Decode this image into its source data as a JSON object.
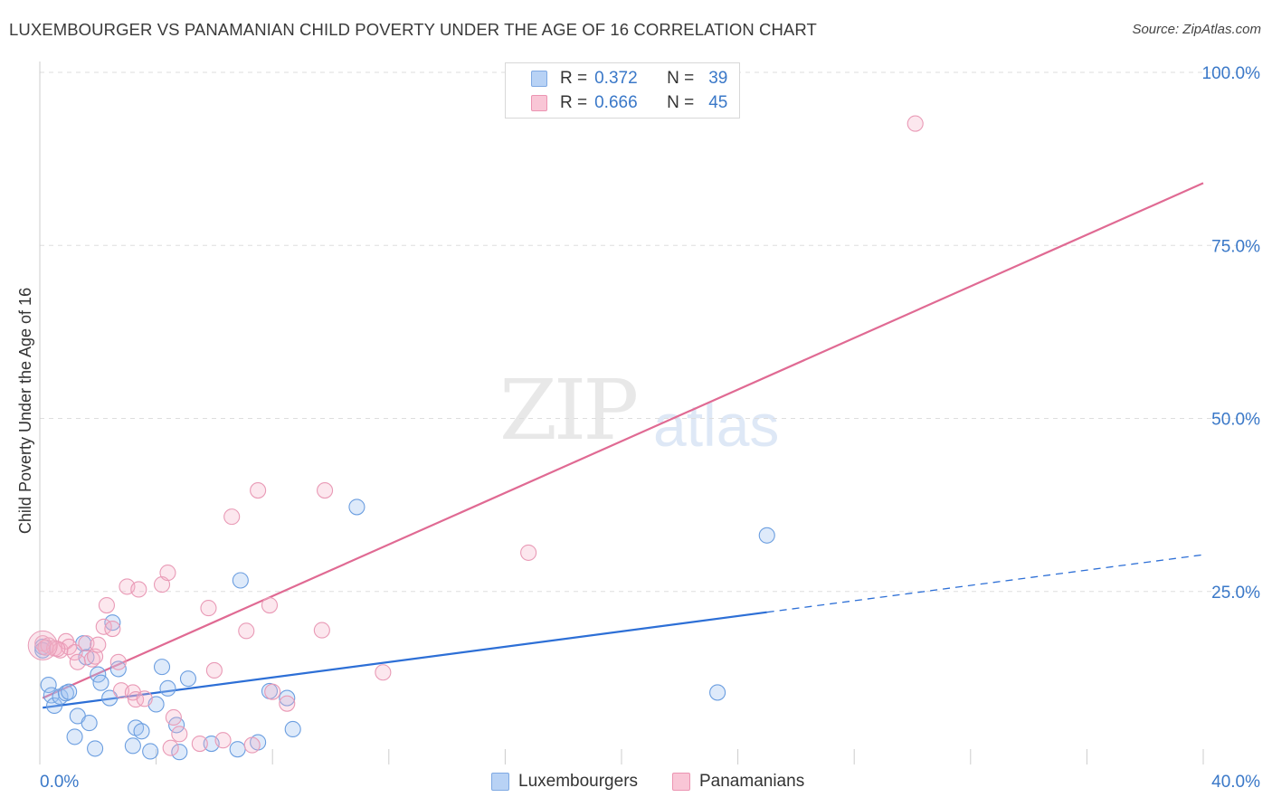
{
  "title": "LUXEMBOURGER VS PANAMANIAN CHILD POVERTY UNDER THE AGE OF 16 CORRELATION CHART",
  "source": "Source: ZipAtlas.com",
  "watermark": {
    "zip": "ZIP",
    "atlas": "atlas"
  },
  "legend": {
    "r_label": "R =",
    "n_label": "N =",
    "rows": [
      {
        "name": "Luxembourgers",
        "r": "0.372",
        "n": "39",
        "fill": "#b8d2f5",
        "stroke": "#7fa9e3"
      },
      {
        "name": "Panamanians",
        "r": "0.666",
        "n": "45",
        "fill": "#f9c6d6",
        "stroke": "#ec94b2"
      }
    ]
  },
  "colors": {
    "blue_point_fill": "rgba(160,195,240,0.35)",
    "blue_point_stroke": "#6b9ee0",
    "blue_line": "#2d6fd6",
    "pink_point_fill": "rgba(245,175,200,0.3)",
    "pink_point_stroke": "#e99ab6",
    "pink_line": "#e06a93",
    "grid": "#dddddd",
    "tick_label": "#3a78c8"
  },
  "chart_data": {
    "type": "scatter",
    "title": "LUXEMBOURGER VS PANAMANIAN CHILD POVERTY UNDER THE AGE OF 16 CORRELATION CHART",
    "xlabel": "",
    "ylabel": "Child Poverty Under the Age of 16",
    "xlim": [
      0,
      40
    ],
    "ylim": [
      0,
      100
    ],
    "x_tick_labels": [
      {
        "value": 0,
        "label": "0.0%"
      },
      {
        "value": 40,
        "label": "40.0%"
      }
    ],
    "y_tick_labels": [
      {
        "value": 25,
        "label": "25.0%"
      },
      {
        "value": 50,
        "label": "50.0%"
      },
      {
        "value": 75,
        "label": "75.0%"
      },
      {
        "value": 100,
        "label": "100.0%"
      }
    ],
    "series": [
      {
        "name": "Luxembourgers",
        "r": 0.372,
        "n": 39,
        "trend": {
          "x_start": 0.1,
          "y_start": 8.2,
          "x_solid_end": 25.0,
          "y_solid_end": 22.0,
          "x_end": 40.0,
          "y_end": 30.3
        },
        "points": [
          {
            "x": 0.1,
            "y": 17.0
          },
          {
            "x": 0.1,
            "y": 16.5
          },
          {
            "x": 0.3,
            "y": 11.5
          },
          {
            "x": 0.4,
            "y": 10.0
          },
          {
            "x": 0.5,
            "y": 8.5
          },
          {
            "x": 0.7,
            "y": 9.8
          },
          {
            "x": 0.9,
            "y": 10.3
          },
          {
            "x": 1.0,
            "y": 10.5
          },
          {
            "x": 1.2,
            "y": 4.0
          },
          {
            "x": 1.3,
            "y": 7.0
          },
          {
            "x": 1.5,
            "y": 17.5
          },
          {
            "x": 1.6,
            "y": 15.5
          },
          {
            "x": 1.7,
            "y": 6.0
          },
          {
            "x": 1.9,
            "y": 2.3
          },
          {
            "x": 2.0,
            "y": 13.0
          },
          {
            "x": 2.1,
            "y": 11.8
          },
          {
            "x": 2.4,
            "y": 9.6
          },
          {
            "x": 2.5,
            "y": 20.5
          },
          {
            "x": 2.7,
            "y": 13.8
          },
          {
            "x": 3.2,
            "y": 2.7
          },
          {
            "x": 3.3,
            "y": 5.3
          },
          {
            "x": 3.5,
            "y": 4.8
          },
          {
            "x": 3.8,
            "y": 1.9
          },
          {
            "x": 4.0,
            "y": 8.7
          },
          {
            "x": 4.2,
            "y": 14.1
          },
          {
            "x": 4.4,
            "y": 11.0
          },
          {
            "x": 4.7,
            "y": 5.7
          },
          {
            "x": 4.8,
            "y": 1.8
          },
          {
            "x": 5.1,
            "y": 12.4
          },
          {
            "x": 5.9,
            "y": 3.0
          },
          {
            "x": 6.8,
            "y": 2.2
          },
          {
            "x": 6.9,
            "y": 26.6
          },
          {
            "x": 7.5,
            "y": 3.2
          },
          {
            "x": 7.9,
            "y": 10.6
          },
          {
            "x": 8.5,
            "y": 9.6
          },
          {
            "x": 8.7,
            "y": 5.1
          },
          {
            "x": 10.9,
            "y": 37.2
          },
          {
            "x": 23.3,
            "y": 10.4
          },
          {
            "x": 25.0,
            "y": 33.1
          }
        ]
      },
      {
        "name": "Panamanians",
        "r": 0.666,
        "n": 45,
        "trend": {
          "x_start": 0.1,
          "y_start": 9.6,
          "x_end": 40.0,
          "y_end": 84.0
        },
        "points": [
          {
            "x": 0.1,
            "y": 17.5
          },
          {
            "x": 0.3,
            "y": 17.2
          },
          {
            "x": 0.5,
            "y": 16.8
          },
          {
            "x": 0.7,
            "y": 16.5
          },
          {
            "x": 0.9,
            "y": 17.8
          },
          {
            "x": 1.0,
            "y": 17.0
          },
          {
            "x": 1.2,
            "y": 16.2
          },
          {
            "x": 1.3,
            "y": 14.8
          },
          {
            "x": 1.6,
            "y": 17.5
          },
          {
            "x": 1.8,
            "y": 15.2
          },
          {
            "x": 1.9,
            "y": 15.6
          },
          {
            "x": 2.0,
            "y": 17.3
          },
          {
            "x": 2.2,
            "y": 19.9
          },
          {
            "x": 2.3,
            "y": 23.0
          },
          {
            "x": 2.5,
            "y": 19.6
          },
          {
            "x": 2.7,
            "y": 14.8
          },
          {
            "x": 2.8,
            "y": 10.7
          },
          {
            "x": 3.0,
            "y": 25.7
          },
          {
            "x": 3.2,
            "y": 10.4
          },
          {
            "x": 3.3,
            "y": 9.4
          },
          {
            "x": 3.4,
            "y": 25.3
          },
          {
            "x": 3.6,
            "y": 9.5
          },
          {
            "x": 4.2,
            "y": 26.0
          },
          {
            "x": 4.4,
            "y": 27.7
          },
          {
            "x": 4.5,
            "y": 2.4
          },
          {
            "x": 4.6,
            "y": 6.8
          },
          {
            "x": 4.8,
            "y": 4.4
          },
          {
            "x": 5.5,
            "y": 3.0
          },
          {
            "x": 5.8,
            "y": 22.6
          },
          {
            "x": 6.0,
            "y": 13.6
          },
          {
            "x": 6.3,
            "y": 3.5
          },
          {
            "x": 6.6,
            "y": 35.8
          },
          {
            "x": 7.1,
            "y": 19.3
          },
          {
            "x": 7.3,
            "y": 2.8
          },
          {
            "x": 7.5,
            "y": 39.6
          },
          {
            "x": 7.9,
            "y": 23.0
          },
          {
            "x": 8.0,
            "y": 10.5
          },
          {
            "x": 8.5,
            "y": 8.8
          },
          {
            "x": 9.8,
            "y": 39.6
          },
          {
            "x": 9.7,
            "y": 19.4
          },
          {
            "x": 11.8,
            "y": 13.3
          },
          {
            "x": 16.8,
            "y": 30.6
          },
          {
            "x": 30.1,
            "y": 92.6
          },
          {
            "x": 0.2,
            "y": 16.9
          },
          {
            "x": 0.6,
            "y": 16.7
          }
        ]
      }
    ]
  }
}
